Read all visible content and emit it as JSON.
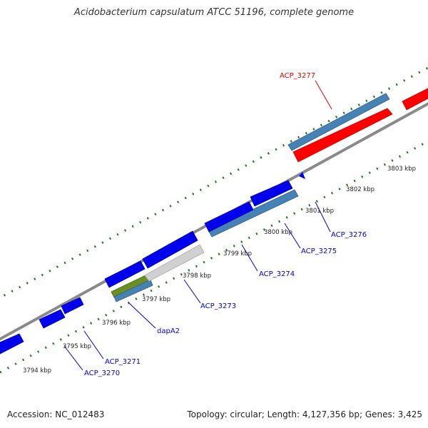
{
  "title": "Acidobacterium capsulatum ATCC 51196, complete genome",
  "footer": {
    "accession": "Accession: NC_012483",
    "summary": "Topology: circular; Length: 4,127,356 bp; Genes: 3,425"
  },
  "colors": {
    "forward_gene": "#0000ee",
    "reverse_gene": "#4682b4",
    "highlighted_gene": "#ff0000",
    "label_default": "#0000cc",
    "label_highlight": "#dd0000",
    "tick_green": "#1a7a1a",
    "backbone": "#888888",
    "pseudo_gene": "#cccccc",
    "olive_gene": "#6b8e23"
  },
  "scale_labels": [
    "3794 kbp",
    "3795 kbp",
    "3796 kbp",
    "3797 kbp",
    "3798 kbp",
    "3799 kbp",
    "3800 kbp",
    "3801 kbp",
    "3802 kbp",
    "3803 kbp"
  ],
  "genes": [
    {
      "label": "ACP_3270",
      "color": "#0000cc"
    },
    {
      "label": "ACP_3271",
      "color": "#0000cc"
    },
    {
      "label": "dapA2",
      "color": "#0000cc"
    },
    {
      "label": "ACP_3273",
      "color": "#0000cc"
    },
    {
      "label": "ACP_3274",
      "color": "#0000cc"
    },
    {
      "label": "ACP_3275",
      "color": "#0000cc"
    },
    {
      "label": "ACP_3276",
      "color": "#0000cc"
    },
    {
      "label": "ACP_3277",
      "color": "#dd0000"
    }
  ]
}
